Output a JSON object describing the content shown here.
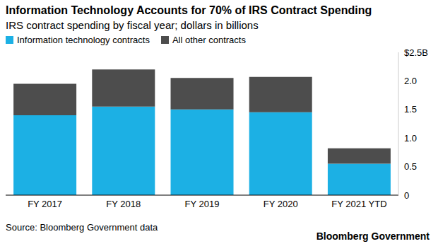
{
  "chart_data": {
    "type": "bar",
    "title": "Information Technology Accounts for 70% of IRS Contract Spending",
    "subtitle": "IRS contract spending by fiscal year; dollars in billions",
    "source": "Source: Bloomberg Government data",
    "credit": "Bloomberg Government",
    "categories": [
      "FY 2017",
      "FY 2018",
      "FY 2019",
      "FY 2020",
      "FY 2021 YTD"
    ],
    "series": [
      {
        "name": "Information technology contracts",
        "color": "#1cb0e4",
        "values": [
          1.4,
          1.55,
          1.5,
          1.45,
          0.55
        ]
      },
      {
        "name": "All other contracts",
        "color": "#4d4d4d",
        "values": [
          0.55,
          0.65,
          0.55,
          0.62,
          0.27
        ]
      }
    ],
    "stacked": true,
    "grid": false,
    "ylim": [
      0,
      2.5
    ],
    "yticks": [
      0,
      0.5,
      {
        "value": 1,
        "label": "1.0"
      },
      1.5,
      {
        "value": 2,
        "label": "2.0"
      },
      {
        "value": 2.5,
        "label": "$2.5B"
      }
    ]
  }
}
